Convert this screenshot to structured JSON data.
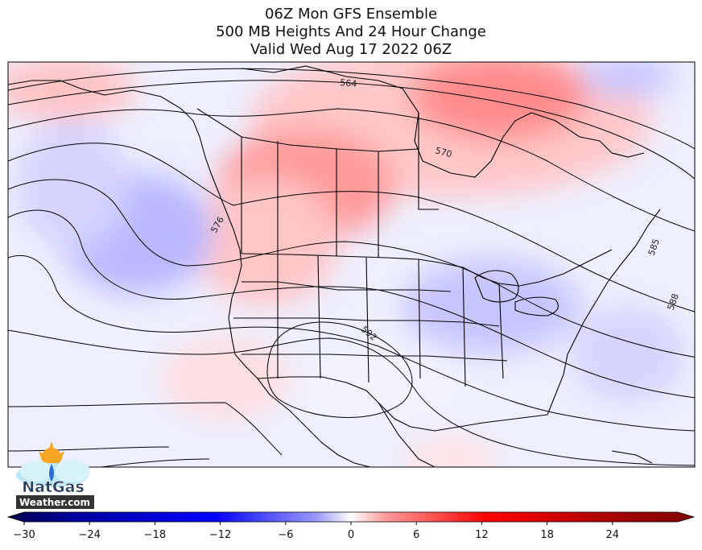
{
  "title": {
    "line1": "06Z Mon GFS Ensemble",
    "line2": "500 MB Heights And 24 Hour Change",
    "line3": "Valid Wed Aug 17 2022 06Z"
  },
  "contour_labels": [
    "564",
    "570",
    "576",
    "585",
    "588",
    "592"
  ],
  "colorbar": {
    "ticks": [
      "−30",
      "−24",
      "−18",
      "−12",
      "−6",
      "0",
      "6",
      "12",
      "18",
      "24"
    ],
    "min": -30,
    "max": 30,
    "colors": {
      "neg_extreme": "#00004c",
      "neg_strong": "#0000ff",
      "neg_light": "#b3b3ff",
      "zero": "#ffffff",
      "pos_light": "#ffb3b3",
      "pos_strong": "#ff0000",
      "pos_extreme": "#800000"
    }
  },
  "logo": {
    "brand": "NatGas",
    "domain": "Weather.com"
  }
}
